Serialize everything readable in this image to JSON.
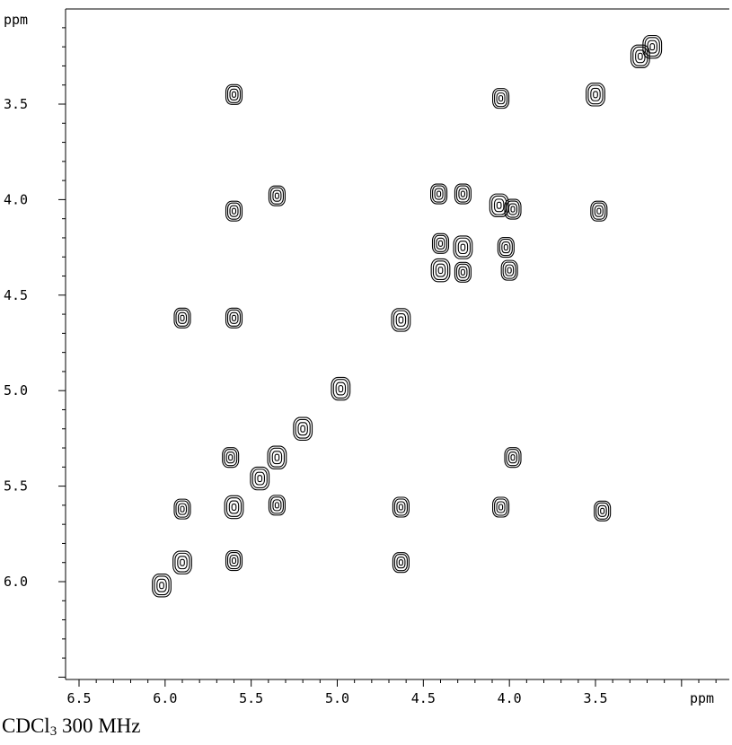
{
  "caption": {
    "solvent": "CDCl",
    "solvent_sub": "3",
    "field": "300 MHz"
  },
  "chart_data": {
    "type": "contour",
    "x_unit_label": "ppm",
    "y_unit_label": "ppm",
    "xlim": [
      6.5,
      2.8
    ],
    "ylim": [
      3.05,
      6.5
    ],
    "x_ticks": [
      "6.5",
      "6.0",
      "5.5",
      "5.0",
      "4.5",
      "4.0",
      "3.5"
    ],
    "y_ticks": [
      "3.5",
      "4.0",
      "4.5",
      "5.0",
      "5.5",
      "6.0"
    ],
    "peaks": [
      {
        "x": 3.17,
        "y": 3.2
      },
      {
        "x": 3.24,
        "y": 3.25
      },
      {
        "x": 5.6,
        "y": 3.45
      },
      {
        "x": 4.05,
        "y": 3.47
      },
      {
        "x": 3.5,
        "y": 3.45
      },
      {
        "x": 5.6,
        "y": 4.06
      },
      {
        "x": 5.35,
        "y": 3.98
      },
      {
        "x": 4.41,
        "y": 3.97
      },
      {
        "x": 4.27,
        "y": 3.97
      },
      {
        "x": 4.06,
        "y": 4.03
      },
      {
        "x": 3.98,
        "y": 4.05
      },
      {
        "x": 3.48,
        "y": 4.06
      },
      {
        "x": 4.4,
        "y": 4.23
      },
      {
        "x": 4.27,
        "y": 4.25
      },
      {
        "x": 4.02,
        "y": 4.25
      },
      {
        "x": 4.4,
        "y": 4.37
      },
      {
        "x": 4.27,
        "y": 4.38
      },
      {
        "x": 4.0,
        "y": 4.37
      },
      {
        "x": 5.9,
        "y": 4.62
      },
      {
        "x": 5.6,
        "y": 4.62
      },
      {
        "x": 4.63,
        "y": 4.63
      },
      {
        "x": 4.98,
        "y": 4.99
      },
      {
        "x": 5.2,
        "y": 5.2
      },
      {
        "x": 5.62,
        "y": 5.35
      },
      {
        "x": 5.35,
        "y": 5.35
      },
      {
        "x": 3.98,
        "y": 5.35
      },
      {
        "x": 5.45,
        "y": 5.46
      },
      {
        "x": 5.9,
        "y": 5.62
      },
      {
        "x": 5.6,
        "y": 5.61
      },
      {
        "x": 5.35,
        "y": 5.6
      },
      {
        "x": 4.63,
        "y": 5.61
      },
      {
        "x": 4.05,
        "y": 5.61
      },
      {
        "x": 3.46,
        "y": 5.63
      },
      {
        "x": 5.9,
        "y": 5.9
      },
      {
        "x": 5.6,
        "y": 5.89
      },
      {
        "x": 4.63,
        "y": 5.9
      },
      {
        "x": 6.02,
        "y": 6.02
      }
    ]
  }
}
